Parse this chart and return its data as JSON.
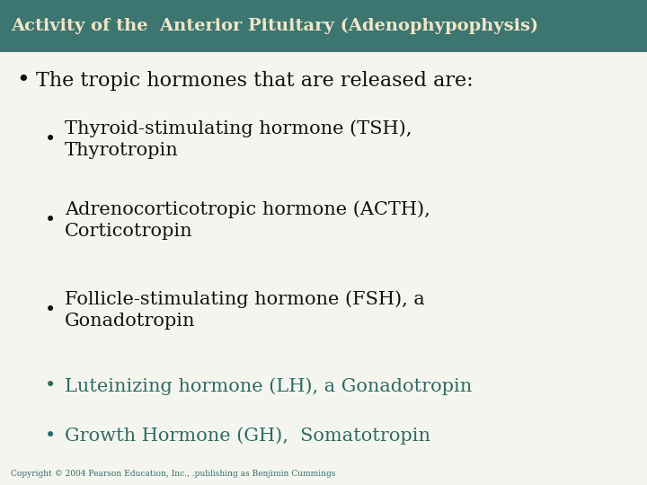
{
  "title": "Activity of the  Anterior Pituitary (Adenophypophysis)",
  "title_bg_color": "#3d7570",
  "title_text_color": "#f0e6c8",
  "body_bg_color": "#f5f5f0",
  "text_color": "#111111",
  "teal_color": "#2e6b65",
  "copyright": "Copyright © 2004 Pearson Education, Inc., .publishing as Benjimin Cummings",
  "bullet1_text": "The tropic hormones that are released are:",
  "sub_bullets": [
    "Thyroid-stimulating hormone (TSH),\nThyrotropin",
    "Adrenocorticotropic hormone (ACTH),\nCorticotropin",
    "Follicle-stimulating hormone (FSH), a\nGonadotropin",
    "Luteinizing hormone (LH), a Gonadotropin",
    "Growth Hormone (GH),  Somatotropin"
  ],
  "sub_colors": [
    "#111111",
    "#111111",
    "#111111",
    "#2e6b65",
    "#2e6b65"
  ],
  "title_fontsize": 14,
  "bullet1_fontsize": 16,
  "sub_bullet_fontsize": 15,
  "copyright_fontsize": 6.5,
  "fig_width": 7.2,
  "fig_height": 5.4,
  "dpi": 100
}
